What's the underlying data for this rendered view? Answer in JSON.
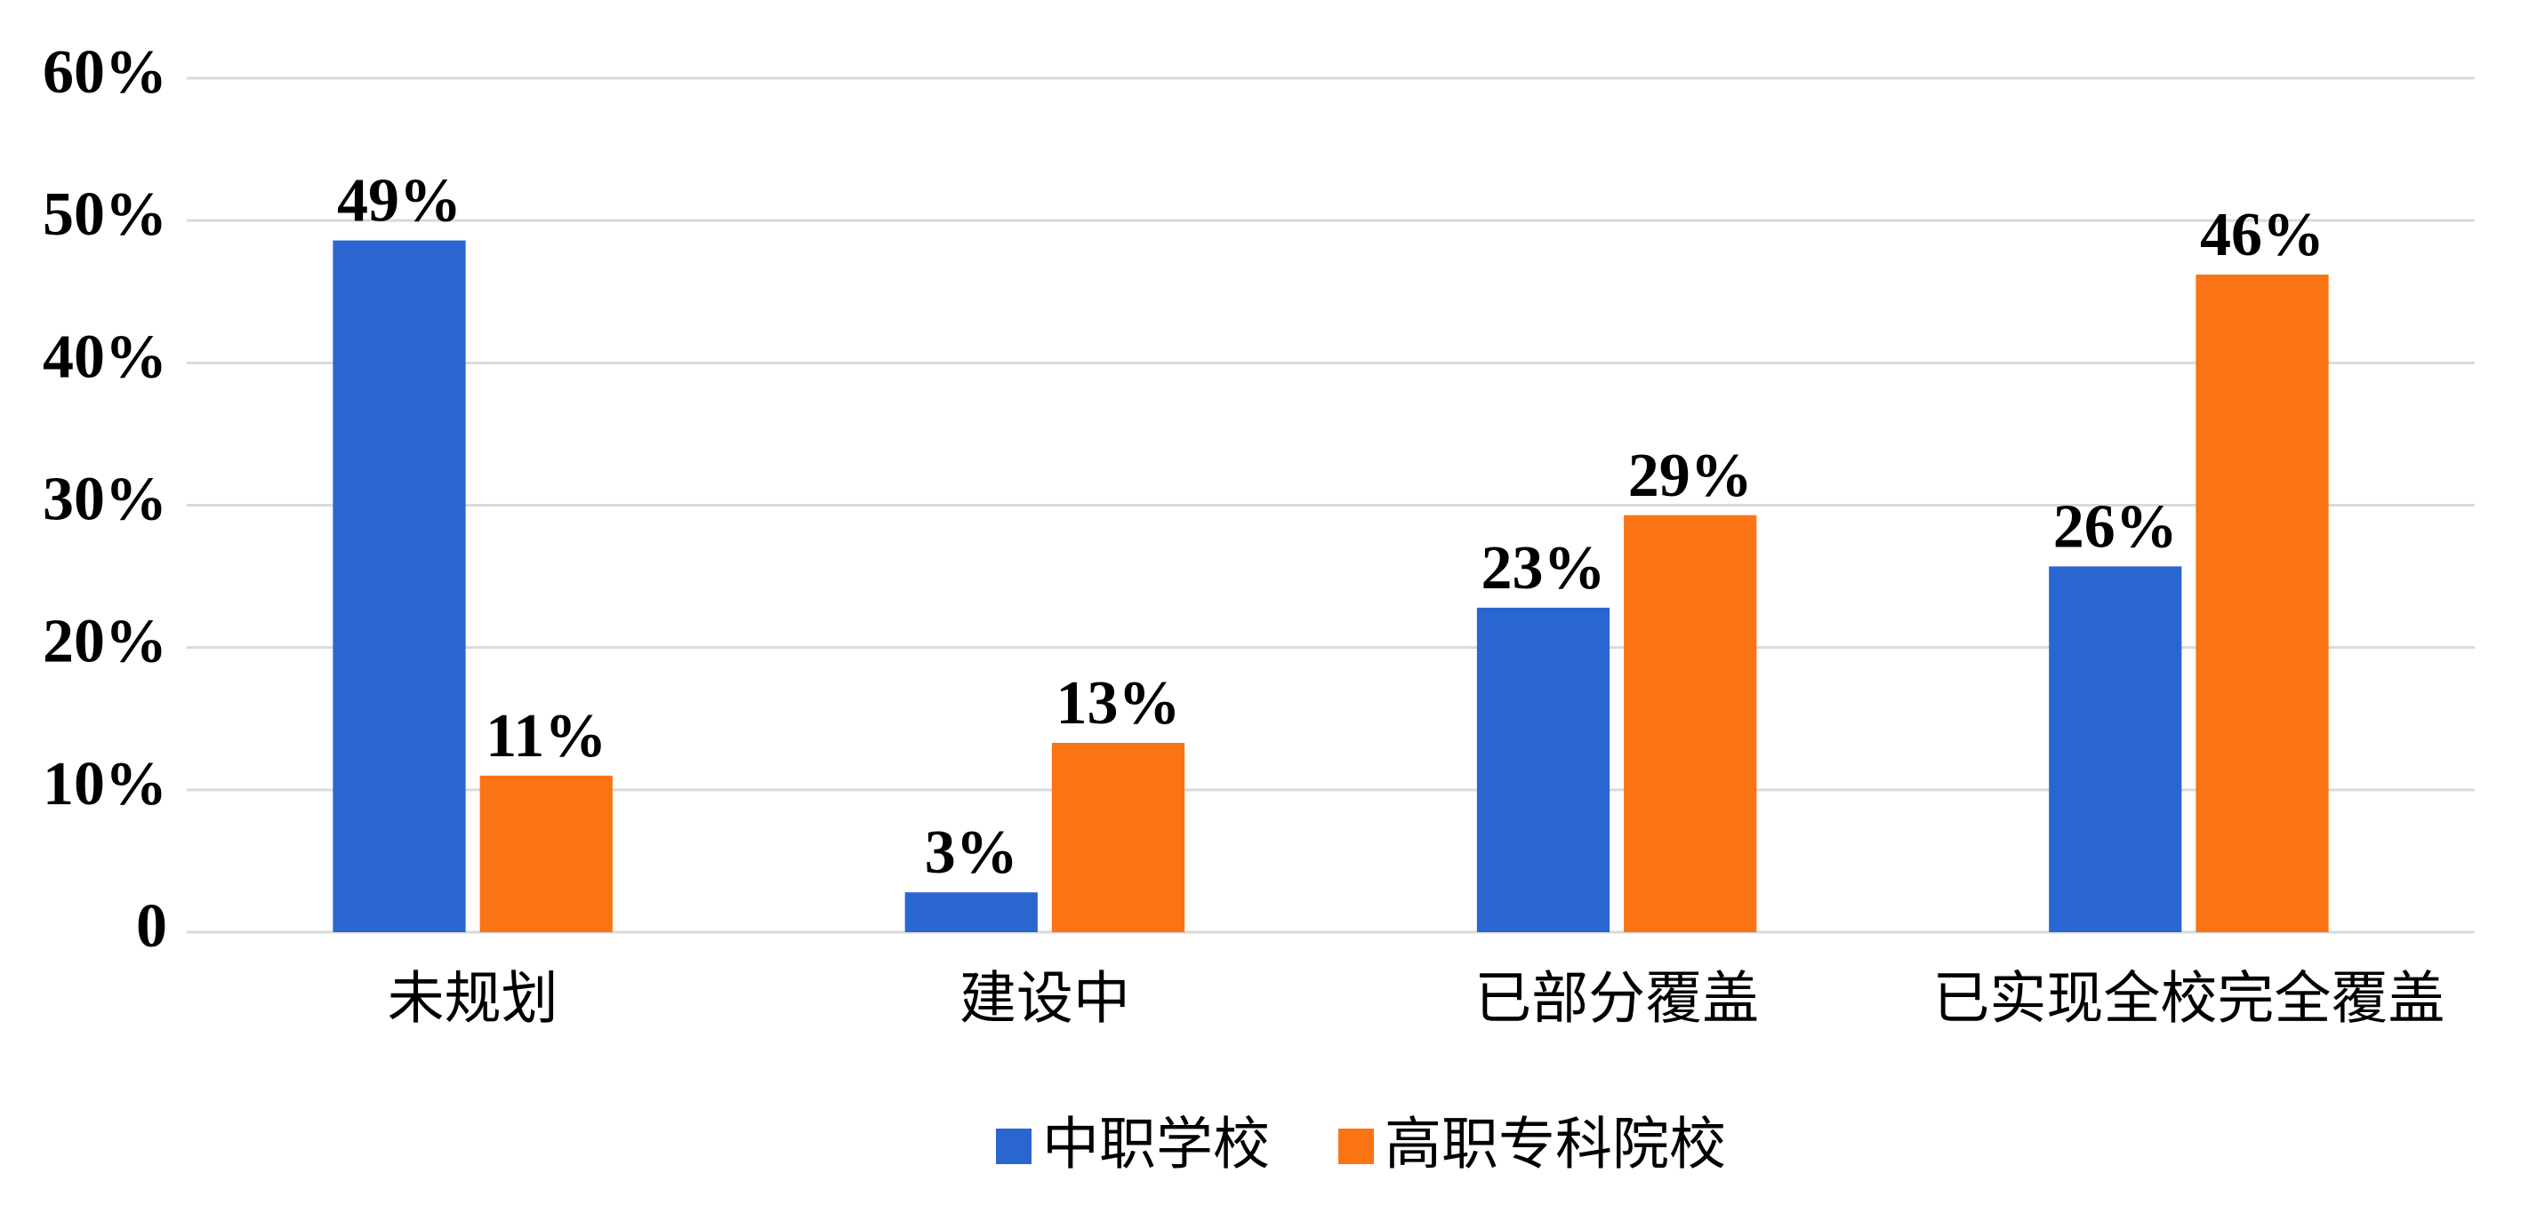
{
  "chart_data": {
    "type": "bar",
    "categories": [
      "未规划",
      "建设中",
      "已部分覆盖",
      "已实现全校完全覆盖"
    ],
    "series": [
      {
        "name": "中职学校",
        "color": "#2a66d0",
        "values": [
          48.6,
          2.8,
          22.8,
          25.7
        ],
        "value_labels": [
          "49%",
          "3%",
          "23%",
          "26%"
        ]
      },
      {
        "name": "高职专科院校",
        "color": "#fa7314",
        "values": [
          11.0,
          13.3,
          29.3,
          46.2
        ],
        "value_labels": [
          "11%",
          "13%",
          "29%",
          "46%"
        ]
      }
    ],
    "ylim": [
      0,
      60
    ],
    "yticks": [
      0,
      {
        "value": 10,
        "label": "10%"
      },
      {
        "value": 20,
        "label": "20%"
      },
      {
        "value": 30,
        "label": "30%"
      },
      {
        "value": 40,
        "label": "40%"
      },
      {
        "value": 50,
        "label": "50%"
      },
      {
        "value": 60,
        "label": "60%"
      }
    ],
    "grid": true,
    "legend": "bottom"
  }
}
